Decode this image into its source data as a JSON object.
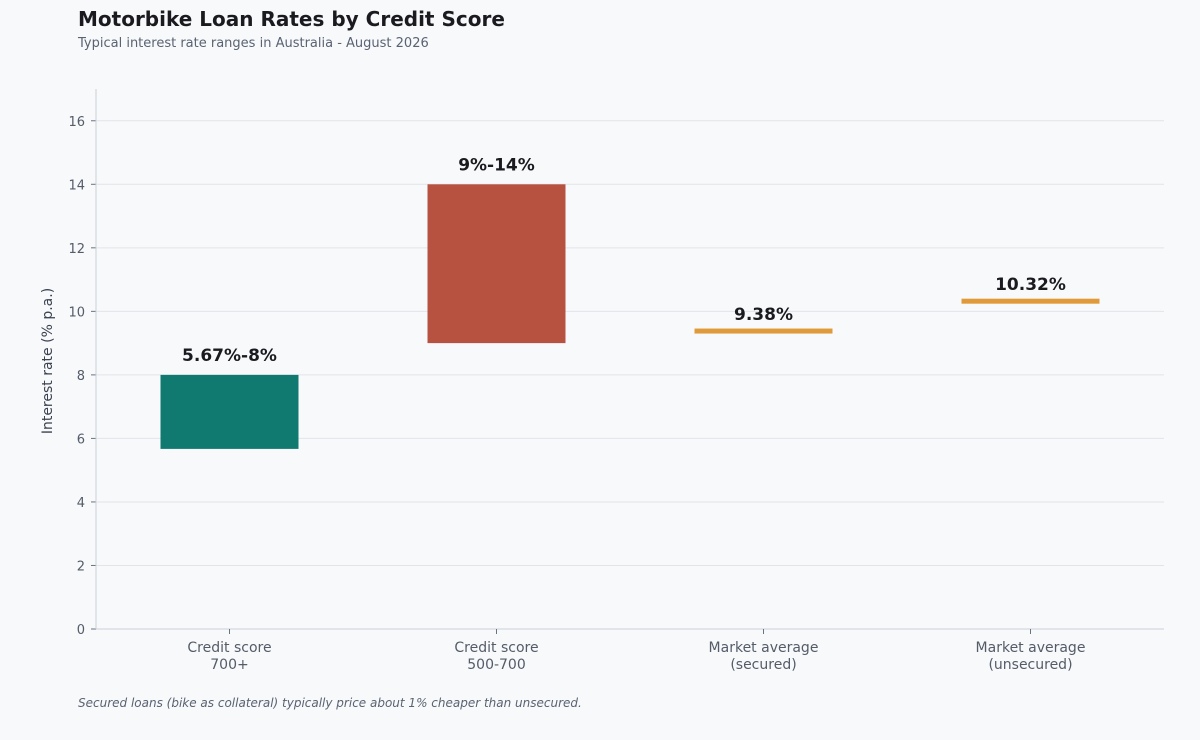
{
  "title": "Motorbike Loan Rates by Credit Score",
  "subtitle": "Typical interest rate ranges in Australia - August 2026",
  "footnote": "Secured loans (bike as collateral) typically price about 1% cheaper than unsecured.",
  "chart_data": {
    "type": "bar",
    "title": "Motorbike Loan Rates by Credit Score",
    "subtitle": "Typical interest rate ranges in Australia - August 2026",
    "xlabel": "",
    "ylabel": "Interest rate (% p.a.)",
    "ylim": [
      0,
      17
    ],
    "yticks": [
      0,
      2,
      4,
      6,
      8,
      10,
      12,
      14,
      16
    ],
    "grid": true,
    "categories": [
      [
        "Credit score",
        "700+"
      ],
      [
        "Credit score",
        "500-700"
      ],
      [
        "Market average",
        "(secured)"
      ],
      [
        "Market average",
        "(unsecured)"
      ]
    ],
    "bars": [
      {
        "low": 5.67,
        "high": 8,
        "label": "5.67%-8%",
        "color": "#107a70",
        "kind": "range"
      },
      {
        "low": 9,
        "high": 14,
        "label": "9%-14%",
        "color": "#b75240",
        "kind": "range"
      },
      {
        "value": 9.38,
        "label": "9.38%",
        "color": "#e09a3a",
        "kind": "point"
      },
      {
        "value": 10.32,
        "label": "10.32%",
        "color": "#e09a3a",
        "kind": "point"
      }
    ]
  }
}
